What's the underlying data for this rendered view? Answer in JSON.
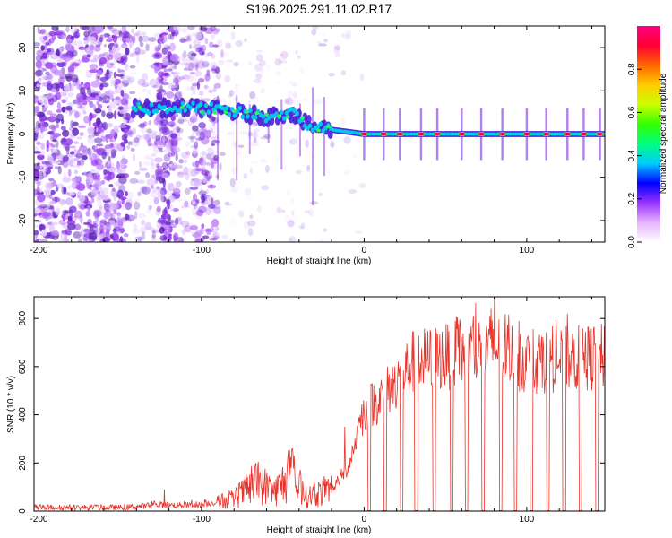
{
  "title": "S196.2025.291.11.02.R17",
  "colors": {
    "snr_line": "#e8332a",
    "scatter_base": "#7a2be2",
    "axis": "#000000"
  },
  "chart_data": [
    {
      "type": "heatmap",
      "name": "spectrogram",
      "xlabel": "Height of straight line (km)",
      "ylabel": "Frequency (Hz)",
      "xlim": [
        -203,
        148
      ],
      "ylim": [
        -25,
        25
      ],
      "xticks": [
        -200,
        -100,
        0,
        100
      ],
      "yticks": [
        -20,
        -10,
        0,
        10,
        20
      ],
      "colorbar": {
        "label": "Normalized spectral amplitude",
        "range": [
          0.0,
          1.0
        ],
        "ticks": [
          0.0,
          0.2,
          0.4,
          0.6,
          0.8
        ],
        "tick_labels": [
          "0.0",
          "0.2",
          "0.4",
          "0.6",
          "0.8"
        ],
        "colors": [
          "#ffffff",
          "#e6b3ff",
          "#9933ff",
          "#0000ff",
          "#00ccff",
          "#00ff80",
          "#33ff00",
          "#ccff00",
          "#ffcc00",
          "#ff6600",
          "#ff0033",
          "#ff0080"
        ]
      },
      "ridge": {
        "description": "dominant frequency track",
        "points": [
          {
            "x": -142,
            "y": 6
          },
          {
            "x": -125,
            "y": 6
          },
          {
            "x": -100,
            "y": 6
          },
          {
            "x": -80,
            "y": 5
          },
          {
            "x": -60,
            "y": 4
          },
          {
            "x": -45,
            "y": 5
          },
          {
            "x": -35,
            "y": 2
          },
          {
            "x": -20,
            "y": 1
          },
          {
            "x": 0,
            "y": 0
          },
          {
            "x": 40,
            "y": 0
          },
          {
            "x": 100,
            "y": 0
          },
          {
            "x": 148,
            "y": 0
          }
        ],
        "peaks_x": [
          0,
          12,
          22,
          35,
          45,
          60,
          72,
          85,
          100,
          112,
          125,
          135,
          145
        ]
      }
    },
    {
      "type": "line",
      "name": "snr",
      "xlabel": "Height of straight line (km)",
      "ylabel": "SNR (10 * v/v)",
      "xlim": [
        -203,
        148
      ],
      "ylim": [
        0,
        890
      ],
      "xticks": [
        -200,
        -100,
        0,
        100
      ],
      "yticks": [
        0,
        200,
        400,
        600,
        800
      ],
      "color": "#e8332a",
      "envelope": [
        {
          "x": -203,
          "y": 15
        },
        {
          "x": -150,
          "y": 15
        },
        {
          "x": -125,
          "y": 25
        },
        {
          "x": -100,
          "y": 25
        },
        {
          "x": -80,
          "y": 50
        },
        {
          "x": -65,
          "y": 120
        },
        {
          "x": -55,
          "y": 80
        },
        {
          "x": -45,
          "y": 150
        },
        {
          "x": -35,
          "y": 60
        },
        {
          "x": -20,
          "y": 90
        },
        {
          "x": -10,
          "y": 180
        },
        {
          "x": -5,
          "y": 300
        },
        {
          "x": 0,
          "y": 420
        },
        {
          "x": 10,
          "y": 470
        },
        {
          "x": 20,
          "y": 540
        },
        {
          "x": 30,
          "y": 620
        },
        {
          "x": 50,
          "y": 640
        },
        {
          "x": 80,
          "y": 680
        },
        {
          "x": 100,
          "y": 620
        },
        {
          "x": 120,
          "y": 630
        },
        {
          "x": 148,
          "y": 640
        }
      ],
      "dropouts_x": [
        3,
        13,
        23,
        32,
        43,
        54,
        63,
        73,
        84,
        93,
        103,
        113,
        123,
        133,
        143
      ],
      "spikes": [
        {
          "x": -123,
          "y": 90
        },
        {
          "x": -65,
          "y": 205
        },
        {
          "x": -45,
          "y": 225
        },
        {
          "x": -12,
          "y": 350
        },
        {
          "x": -3,
          "y": 390
        },
        {
          "x": 80,
          "y": 890
        },
        {
          "x": 78,
          "y": 840
        }
      ]
    }
  ]
}
